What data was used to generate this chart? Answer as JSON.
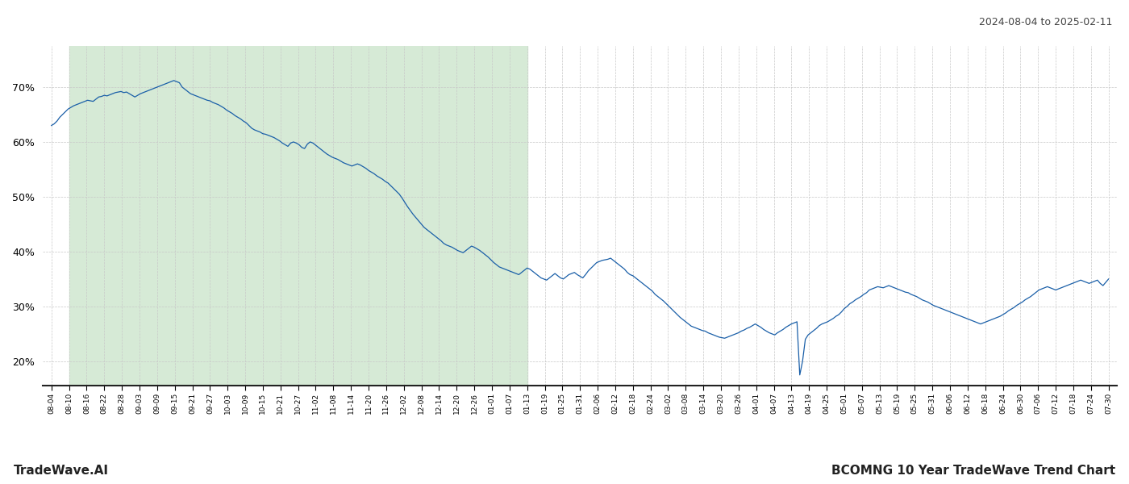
{
  "title_top_right": "2024-08-04 to 2025-02-11",
  "title_bottom_left": "TradeWave.AI",
  "title_bottom_right": "BCOMNG 10 Year TradeWave Trend Chart",
  "bg_color": "#ffffff",
  "plot_bg_color": "#ffffff",
  "shaded_region_color": "#d6ead6",
  "line_color": "#1a5fa8",
  "grid_color": "#c8c8c8",
  "ylim": [
    0.155,
    0.775
  ],
  "yticks": [
    0.2,
    0.3,
    0.4,
    0.5,
    0.6,
    0.7
  ],
  "x_labels": [
    "08-04",
    "08-10",
    "08-16",
    "08-22",
    "08-28",
    "09-03",
    "09-09",
    "09-15",
    "09-21",
    "09-27",
    "10-03",
    "10-09",
    "10-15",
    "10-21",
    "10-27",
    "11-02",
    "11-08",
    "11-14",
    "11-20",
    "11-26",
    "12-02",
    "12-08",
    "12-14",
    "12-20",
    "12-26",
    "01-01",
    "01-07",
    "01-13",
    "01-19",
    "01-25",
    "01-31",
    "02-06",
    "02-12",
    "02-18",
    "02-24",
    "03-02",
    "03-08",
    "03-14",
    "03-20",
    "03-26",
    "04-01",
    "04-07",
    "04-13",
    "04-19",
    "04-25",
    "05-01",
    "05-07",
    "05-13",
    "05-19",
    "05-25",
    "05-31",
    "06-06",
    "06-12",
    "06-18",
    "06-24",
    "06-30",
    "07-06",
    "07-12",
    "07-18",
    "07-24",
    "07-30"
  ],
  "y_values": [
    0.63,
    0.633,
    0.638,
    0.645,
    0.65,
    0.655,
    0.66,
    0.663,
    0.666,
    0.668,
    0.67,
    0.672,
    0.674,
    0.676,
    0.675,
    0.674,
    0.678,
    0.682,
    0.683,
    0.685,
    0.684,
    0.686,
    0.688,
    0.69,
    0.691,
    0.692,
    0.69,
    0.691,
    0.688,
    0.685,
    0.682,
    0.685,
    0.688,
    0.69,
    0.692,
    0.694,
    0.696,
    0.698,
    0.7,
    0.702,
    0.704,
    0.706,
    0.708,
    0.71,
    0.712,
    0.71,
    0.708,
    0.7,
    0.696,
    0.692,
    0.688,
    0.686,
    0.684,
    0.682,
    0.68,
    0.678,
    0.676,
    0.675,
    0.672,
    0.67,
    0.668,
    0.665,
    0.662,
    0.658,
    0.655,
    0.652,
    0.648,
    0.645,
    0.642,
    0.638,
    0.635,
    0.63,
    0.625,
    0.622,
    0.62,
    0.618,
    0.615,
    0.614,
    0.612,
    0.61,
    0.608,
    0.605,
    0.602,
    0.598,
    0.595,
    0.592,
    0.598,
    0.6,
    0.598,
    0.595,
    0.59,
    0.588,
    0.596,
    0.6,
    0.598,
    0.594,
    0.59,
    0.586,
    0.582,
    0.578,
    0.575,
    0.572,
    0.57,
    0.568,
    0.565,
    0.562,
    0.56,
    0.558,
    0.556,
    0.558,
    0.56,
    0.558,
    0.555,
    0.552,
    0.548,
    0.545,
    0.542,
    0.538,
    0.535,
    0.532,
    0.528,
    0.525,
    0.52,
    0.515,
    0.51,
    0.505,
    0.498,
    0.49,
    0.482,
    0.475,
    0.468,
    0.462,
    0.456,
    0.45,
    0.444,
    0.44,
    0.436,
    0.432,
    0.428,
    0.424,
    0.42,
    0.415,
    0.412,
    0.41,
    0.408,
    0.405,
    0.402,
    0.4,
    0.398,
    0.402,
    0.406,
    0.41,
    0.408,
    0.405,
    0.402,
    0.398,
    0.394,
    0.39,
    0.385,
    0.38,
    0.376,
    0.372,
    0.37,
    0.368,
    0.366,
    0.364,
    0.362,
    0.36,
    0.358,
    0.362,
    0.366,
    0.37,
    0.368,
    0.364,
    0.36,
    0.356,
    0.352,
    0.35,
    0.348,
    0.352,
    0.356,
    0.36,
    0.356,
    0.352,
    0.35,
    0.354,
    0.358,
    0.36,
    0.362,
    0.358,
    0.355,
    0.352,
    0.358,
    0.365,
    0.37,
    0.375,
    0.38,
    0.382,
    0.384,
    0.385,
    0.386,
    0.388,
    0.384,
    0.38,
    0.376,
    0.372,
    0.368,
    0.362,
    0.358,
    0.356,
    0.352,
    0.348,
    0.344,
    0.34,
    0.336,
    0.332,
    0.328,
    0.322,
    0.318,
    0.314,
    0.31,
    0.305,
    0.3,
    0.295,
    0.29,
    0.285,
    0.28,
    0.276,
    0.272,
    0.268,
    0.264,
    0.262,
    0.26,
    0.258,
    0.256,
    0.255,
    0.252,
    0.25,
    0.248,
    0.246,
    0.244,
    0.243,
    0.242,
    0.244,
    0.246,
    0.248,
    0.25,
    0.252,
    0.255,
    0.257,
    0.26,
    0.262,
    0.265,
    0.268,
    0.265,
    0.262,
    0.258,
    0.255,
    0.252,
    0.25,
    0.248,
    0.252,
    0.255,
    0.258,
    0.262,
    0.265,
    0.268,
    0.27,
    0.272,
    0.175,
    0.2,
    0.24,
    0.248,
    0.252,
    0.256,
    0.26,
    0.265,
    0.268,
    0.27,
    0.272,
    0.275,
    0.278,
    0.282,
    0.285,
    0.29,
    0.296,
    0.3,
    0.305,
    0.308,
    0.312,
    0.315,
    0.318,
    0.322,
    0.325,
    0.33,
    0.332,
    0.334,
    0.336,
    0.335,
    0.334,
    0.336,
    0.338,
    0.336,
    0.334,
    0.332,
    0.33,
    0.328,
    0.326,
    0.325,
    0.322,
    0.32,
    0.318,
    0.315,
    0.312,
    0.31,
    0.308,
    0.305,
    0.302,
    0.3,
    0.298,
    0.296,
    0.294,
    0.292,
    0.29,
    0.288,
    0.286,
    0.284,
    0.282,
    0.28,
    0.278,
    0.276,
    0.274,
    0.272,
    0.27,
    0.268,
    0.27,
    0.272,
    0.274,
    0.276,
    0.278,
    0.28,
    0.282,
    0.285,
    0.288,
    0.292,
    0.295,
    0.298,
    0.302,
    0.305,
    0.308,
    0.312,
    0.315,
    0.318,
    0.322,
    0.326,
    0.33,
    0.332,
    0.334,
    0.336,
    0.334,
    0.332,
    0.33,
    0.332,
    0.334,
    0.336,
    0.338,
    0.34,
    0.342,
    0.344,
    0.346,
    0.348,
    0.346,
    0.344,
    0.342,
    0.344,
    0.346,
    0.348,
    0.342,
    0.338,
    0.344,
    0.35
  ],
  "shaded_x_start_label": "08-10",
  "shaded_x_end_label": "01-13",
  "n_data_points": 381
}
